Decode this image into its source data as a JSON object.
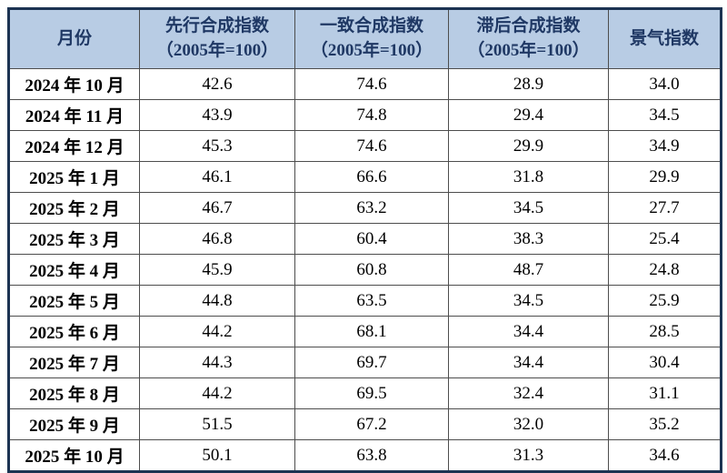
{
  "colors": {
    "header_bg": "#b8cce4",
    "header_text": "#1f3864",
    "outer_border": "#1c3352",
    "grid_line": "#4d4d4d",
    "cell_text": "#000000"
  },
  "table": {
    "headers": [
      {
        "title": "月份",
        "subtitle": ""
      },
      {
        "title": "先行合成指数",
        "subtitle": "（2005年=100）"
      },
      {
        "title": "一致合成指数",
        "subtitle": "（2005年=100）"
      },
      {
        "title": "滞后合成指数",
        "subtitle": "（2005年=100）"
      },
      {
        "title": "景气指数",
        "subtitle": ""
      }
    ],
    "rows": [
      {
        "month": "2024 年 10 月",
        "values": [
          "42.6",
          "74.6",
          "28.9",
          "34.0"
        ]
      },
      {
        "month": "2024 年 11 月",
        "values": [
          "43.9",
          "74.8",
          "29.4",
          "34.5"
        ]
      },
      {
        "month": "2024 年 12 月",
        "values": [
          "45.3",
          "74.6",
          "29.9",
          "34.9"
        ]
      },
      {
        "month": "2025 年 1 月",
        "values": [
          "46.1",
          "66.6",
          "31.8",
          "29.9"
        ]
      },
      {
        "month": "2025 年 2 月",
        "values": [
          "46.7",
          "63.2",
          "34.5",
          "27.7"
        ]
      },
      {
        "month": "2025 年 3 月",
        "values": [
          "46.8",
          "60.4",
          "38.3",
          "25.4"
        ]
      },
      {
        "month": "2025 年 4 月",
        "values": [
          "45.9",
          "60.8",
          "48.7",
          "24.8"
        ]
      },
      {
        "month": "2025 年 5 月",
        "values": [
          "44.8",
          "63.5",
          "34.5",
          "25.9"
        ]
      },
      {
        "month": "2025 年 6 月",
        "values": [
          "44.2",
          "68.1",
          "34.4",
          "28.5"
        ]
      },
      {
        "month": "2025 年 7 月",
        "values": [
          "44.3",
          "69.7",
          "34.4",
          "30.4"
        ]
      },
      {
        "month": "2025 年 8 月",
        "values": [
          "44.2",
          "69.5",
          "32.4",
          "31.1"
        ]
      },
      {
        "month": "2025 年 9 月",
        "values": [
          "51.5",
          "67.2",
          "32.0",
          "35.2"
        ]
      },
      {
        "month": "2025 年 10 月",
        "values": [
          "50.1",
          "63.8",
          "31.3",
          "34.6"
        ]
      }
    ]
  }
}
